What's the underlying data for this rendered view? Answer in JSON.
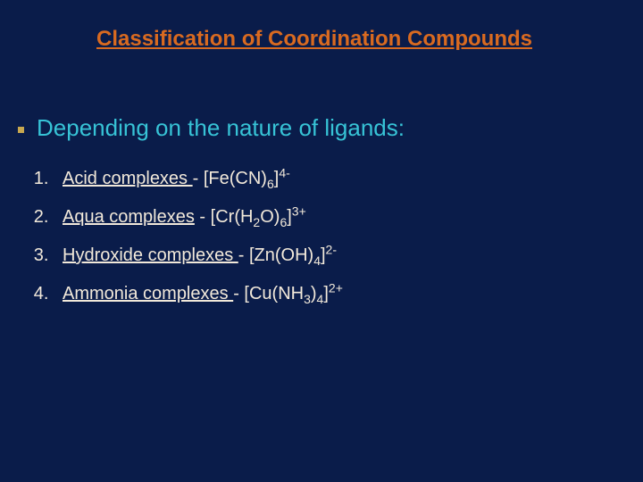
{
  "colors": {
    "background": "#0a1c4a",
    "title": "#d96a20",
    "bullet_text": "#37c3d6",
    "bullet_marker": "#c8a850",
    "list_text": "#f2e9da"
  },
  "typography": {
    "title_fontsize": 24,
    "bullet_fontsize": 26,
    "list_fontsize": 20,
    "font_family": "Arial"
  },
  "title": "Classification of Coordination Compounds",
  "bullet": "Depending on the nature of ligands:",
  "items": [
    {
      "label": "Acid complexes ",
      "sep": " - ",
      "pre": "[Fe(CN)",
      "sub1": "6",
      "mid": "]",
      "sup": "4-",
      "post": ""
    },
    {
      "label": "Aqua complexes",
      "sep": " -  ",
      "pre": "[Cr(H",
      "sub1": "2",
      "mid1": "O)",
      "sub2": "6",
      "mid": "]",
      "sup": "3+",
      "post": ""
    },
    {
      "label": "Hydroxide complexes ",
      "sep": " - ",
      "pre": "[Zn(OH)",
      "sub1": "4",
      "mid": "]",
      "sup": "2-",
      "post": ""
    },
    {
      "label": "Ammonia complexes ",
      "sep": " - ",
      "pre": "[Cu(NH",
      "sub1": "3",
      "mid1": ")",
      "sub2": "4",
      "mid": "]",
      "sup": "2+",
      "post": ""
    }
  ]
}
